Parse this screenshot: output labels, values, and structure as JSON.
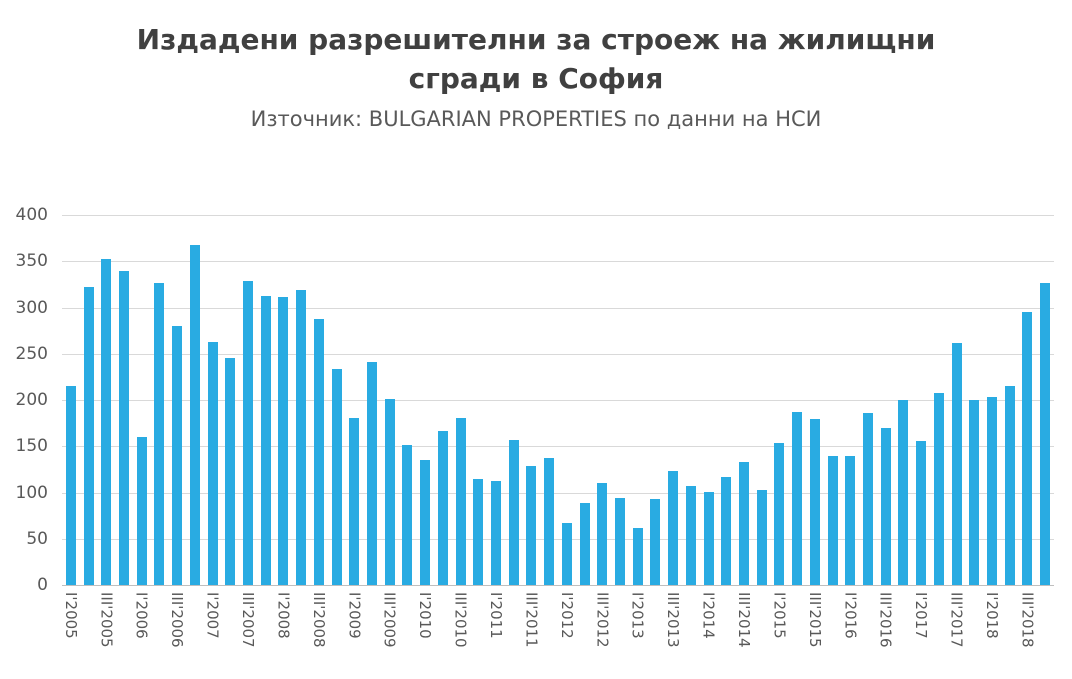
{
  "header": {
    "title_line1": "Издадени разрешителни за строеж на жилищни",
    "title_line2": "сгради в София",
    "subtitle": "Източник: BULGARIAN PROPERTIES по данни на НСИ"
  },
  "colors": {
    "title_text": "#404040",
    "subtitle_text": "#595959",
    "axis_text": "#595959",
    "gridline": "#D9D9D9",
    "axis_line": "#BFBFBF",
    "bar": "#29ABE2"
  },
  "chart_data": {
    "type": "bar",
    "title": "Издадени разрешителни за строеж на жилищни сгради в София",
    "subtitle": "Източник: BULGARIAN PROPERTIES по данни на НСИ",
    "ylim": [
      0,
      400
    ],
    "ytick_step": 50,
    "grid": true,
    "legend": false,
    "bar_color": "#29ABE2",
    "categories": [
      "I'2005",
      "II'2005",
      "III'2005",
      "IV'2005",
      "I'2006",
      "II'2006",
      "III'2006",
      "IV'2006",
      "I'2007",
      "II'2007",
      "III'2007",
      "IV'2007",
      "I'2008",
      "II'2008",
      "III'2008",
      "IV'2008",
      "I'2009",
      "II'2009",
      "III'2009",
      "IV'2009",
      "I'2010",
      "II'2010",
      "III'2010",
      "IV'2010",
      "I'2011",
      "II'2011",
      "III'2011",
      "IV'2011",
      "I'2012",
      "II'2012",
      "III'2012",
      "IV'2012",
      "I'2013",
      "II'2013",
      "III'2013",
      "IV'2013",
      "I'2014",
      "II'2014",
      "III'2014",
      "IV'2014",
      "I'2015",
      "II'2015",
      "III'2015",
      "IV'2015",
      "I'2016",
      "II'2016",
      "III'2016",
      "IV'2016",
      "I'2017",
      "II'2017",
      "III'2017",
      "IV'2017",
      "I'2018",
      "II'2018",
      "III'2018",
      "IV'2018"
    ],
    "values": [
      215,
      322,
      352,
      340,
      160,
      327,
      280,
      368,
      263,
      245,
      329,
      312,
      311,
      319,
      288,
      233,
      181,
      241,
      201,
      151,
      135,
      167,
      181,
      115,
      112,
      157,
      129,
      137,
      67,
      89,
      110,
      94,
      62,
      93,
      123,
      107,
      101,
      117,
      133,
      103,
      154,
      187,
      180,
      140,
      139,
      186,
      170,
      200,
      156,
      208,
      262,
      200,
      203,
      215,
      295,
      327
    ],
    "x_tick_labels": [
      "I'2005",
      "III'2005",
      "I'2006",
      "III'2006",
      "I'2007",
      "III'2007",
      "I'2008",
      "III'2008",
      "I'2009",
      "III'2009",
      "I'2010",
      "III'2010",
      "I'2011",
      "III'2011",
      "I'2012",
      "III'2012",
      "I'2013",
      "III'2013",
      "I'2014",
      "III'2014",
      "I'2015",
      "III'2015",
      "I'2016",
      "III'2016",
      "I'2017",
      "III'2017",
      "I'2018",
      "III'2018"
    ]
  }
}
